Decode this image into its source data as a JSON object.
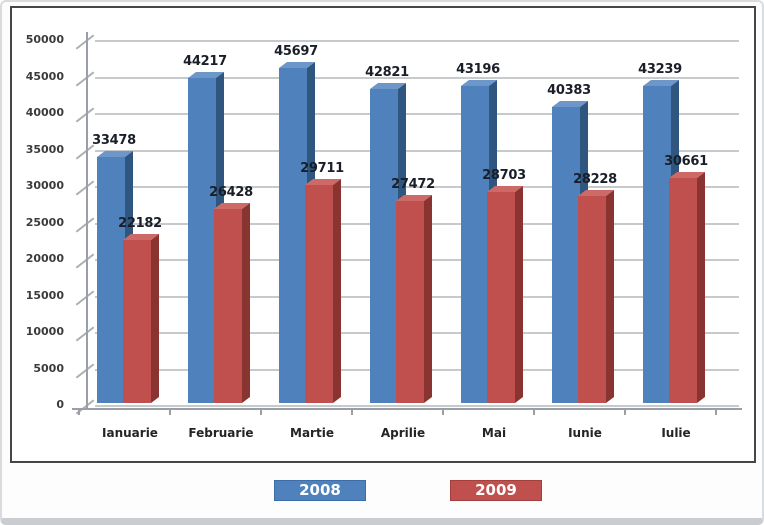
{
  "chart_data": {
    "type": "bar",
    "title": "",
    "categories": [
      "Ianuarie",
      "Februarie",
      "Martie",
      "Aprilie",
      "Mai",
      "Iunie",
      "Iulie"
    ],
    "series": [
      {
        "name": "2008",
        "values": [
          33478,
          44217,
          45697,
          42821,
          43196,
          40383,
          43239
        ]
      },
      {
        "name": "2009",
        "values": [
          22182,
          26428,
          29711,
          27472,
          28703,
          28228,
          30661
        ]
      }
    ],
    "ylim": [
      0,
      50000
    ],
    "ytick_step": 5000,
    "yticks": [
      "50000",
      "45000",
      "40000",
      "35000",
      "30000",
      "25000",
      "20000",
      "15000",
      "10000",
      "5000",
      "0"
    ],
    "grid": true,
    "bar_labels": true,
    "legend_position": "bottom",
    "style": "3d-clustered-column"
  },
  "legend": {
    "items": [
      {
        "label": "2008",
        "color": "#4f81bd",
        "border": "#3d6da6"
      },
      {
        "label": "2009",
        "color": "#c0504d",
        "border": "#a43f3c"
      }
    ]
  },
  "colors": {
    "blue_front": "#4f81bd",
    "blue_top": "#6e97c9",
    "blue_side": "#2e567f",
    "red_front": "#c0504d",
    "red_top": "#cd6a67",
    "red_side": "#8a3432",
    "gridline": "#c6cacd",
    "axis": "#999fa4",
    "value_label": "#1a1e28",
    "frame_border": "#464646"
  }
}
